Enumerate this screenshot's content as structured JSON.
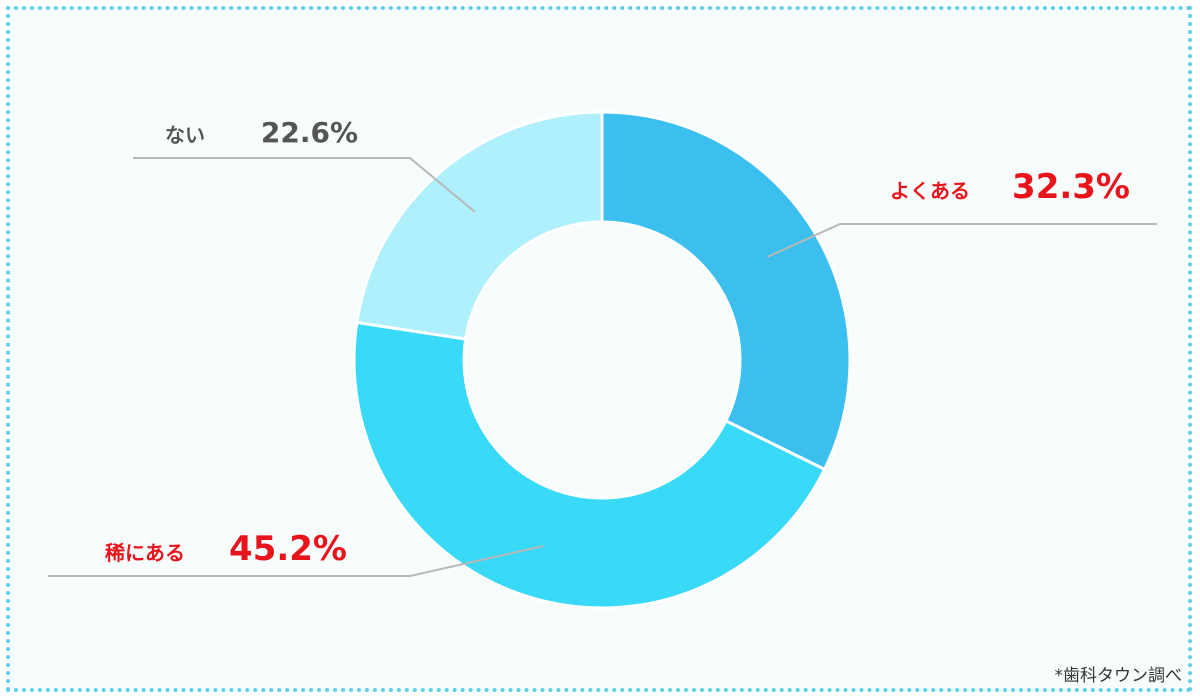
{
  "chart_data": {
    "type": "pie",
    "title": "",
    "categories": [
      "よくある",
      "稀にある",
      "ない"
    ],
    "values": [
      32.3,
      45.2,
      22.6
    ],
    "value_labels": [
      "32.3%",
      "45.2%",
      "22.6%"
    ],
    "colors": [
      "#3bbfee",
      "#38daf7",
      "#aef0fb"
    ],
    "label_colors": [
      "#e8141b",
      "#e8141b",
      "#555555"
    ],
    "donut": true,
    "start_angle": "12 o'clock",
    "direction": "clockwise"
  },
  "source_note": "*歯科タウン調べ",
  "colors": {
    "frame_border": "#5fd0e6",
    "background": "#f7fcfd",
    "leader_line": "#b8b8b8"
  }
}
